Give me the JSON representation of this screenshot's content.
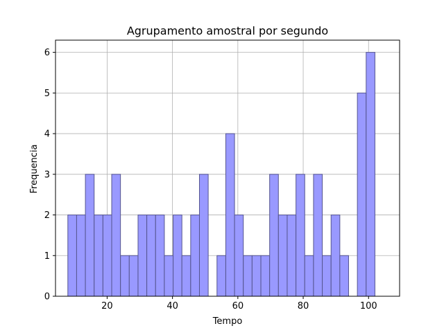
{
  "chart_data": {
    "type": "bar",
    "title": "Agrupamento amostral por segundo",
    "xlabel": "Tempo",
    "ylabel": "Frequencia",
    "xlim": [
      4.2,
      109.5
    ],
    "ylim": [
      0,
      6.3
    ],
    "xticks": [
      20,
      40,
      60,
      80,
      100
    ],
    "yticks": [
      0,
      1,
      2,
      3,
      4,
      5,
      6
    ],
    "grid": true,
    "bin_width": 2.68,
    "bins": [
      {
        "start": 7.98,
        "value": 2
      },
      {
        "start": 10.66,
        "value": 2
      },
      {
        "start": 13.35,
        "value": 3
      },
      {
        "start": 16.03,
        "value": 2
      },
      {
        "start": 18.72,
        "value": 2
      },
      {
        "start": 21.4,
        "value": 3
      },
      {
        "start": 24.09,
        "value": 1
      },
      {
        "start": 26.77,
        "value": 1
      },
      {
        "start": 29.46,
        "value": 2
      },
      {
        "start": 32.14,
        "value": 2
      },
      {
        "start": 34.83,
        "value": 2
      },
      {
        "start": 37.51,
        "value": 1
      },
      {
        "start": 40.2,
        "value": 2
      },
      {
        "start": 42.88,
        "value": 1
      },
      {
        "start": 45.57,
        "value": 2
      },
      {
        "start": 48.25,
        "value": 3
      },
      {
        "start": 50.94,
        "value": 0
      },
      {
        "start": 53.62,
        "value": 1
      },
      {
        "start": 56.31,
        "value": 4
      },
      {
        "start": 58.99,
        "value": 2
      },
      {
        "start": 61.68,
        "value": 1
      },
      {
        "start": 64.36,
        "value": 1
      },
      {
        "start": 67.05,
        "value": 1
      },
      {
        "start": 69.73,
        "value": 3
      },
      {
        "start": 72.42,
        "value": 2
      },
      {
        "start": 75.1,
        "value": 2
      },
      {
        "start": 77.79,
        "value": 3
      },
      {
        "start": 80.47,
        "value": 1
      },
      {
        "start": 83.16,
        "value": 3
      },
      {
        "start": 85.84,
        "value": 1
      },
      {
        "start": 88.53,
        "value": 2
      },
      {
        "start": 91.21,
        "value": 1
      },
      {
        "start": 93.9,
        "value": 0
      },
      {
        "start": 96.58,
        "value": 5
      },
      {
        "start": 99.27,
        "value": 6
      }
    ],
    "colors": {
      "bar_fill": "#9999ff",
      "bar_edge": "#55558f",
      "grid": "#b0b0b0",
      "axis": "#000000"
    }
  }
}
